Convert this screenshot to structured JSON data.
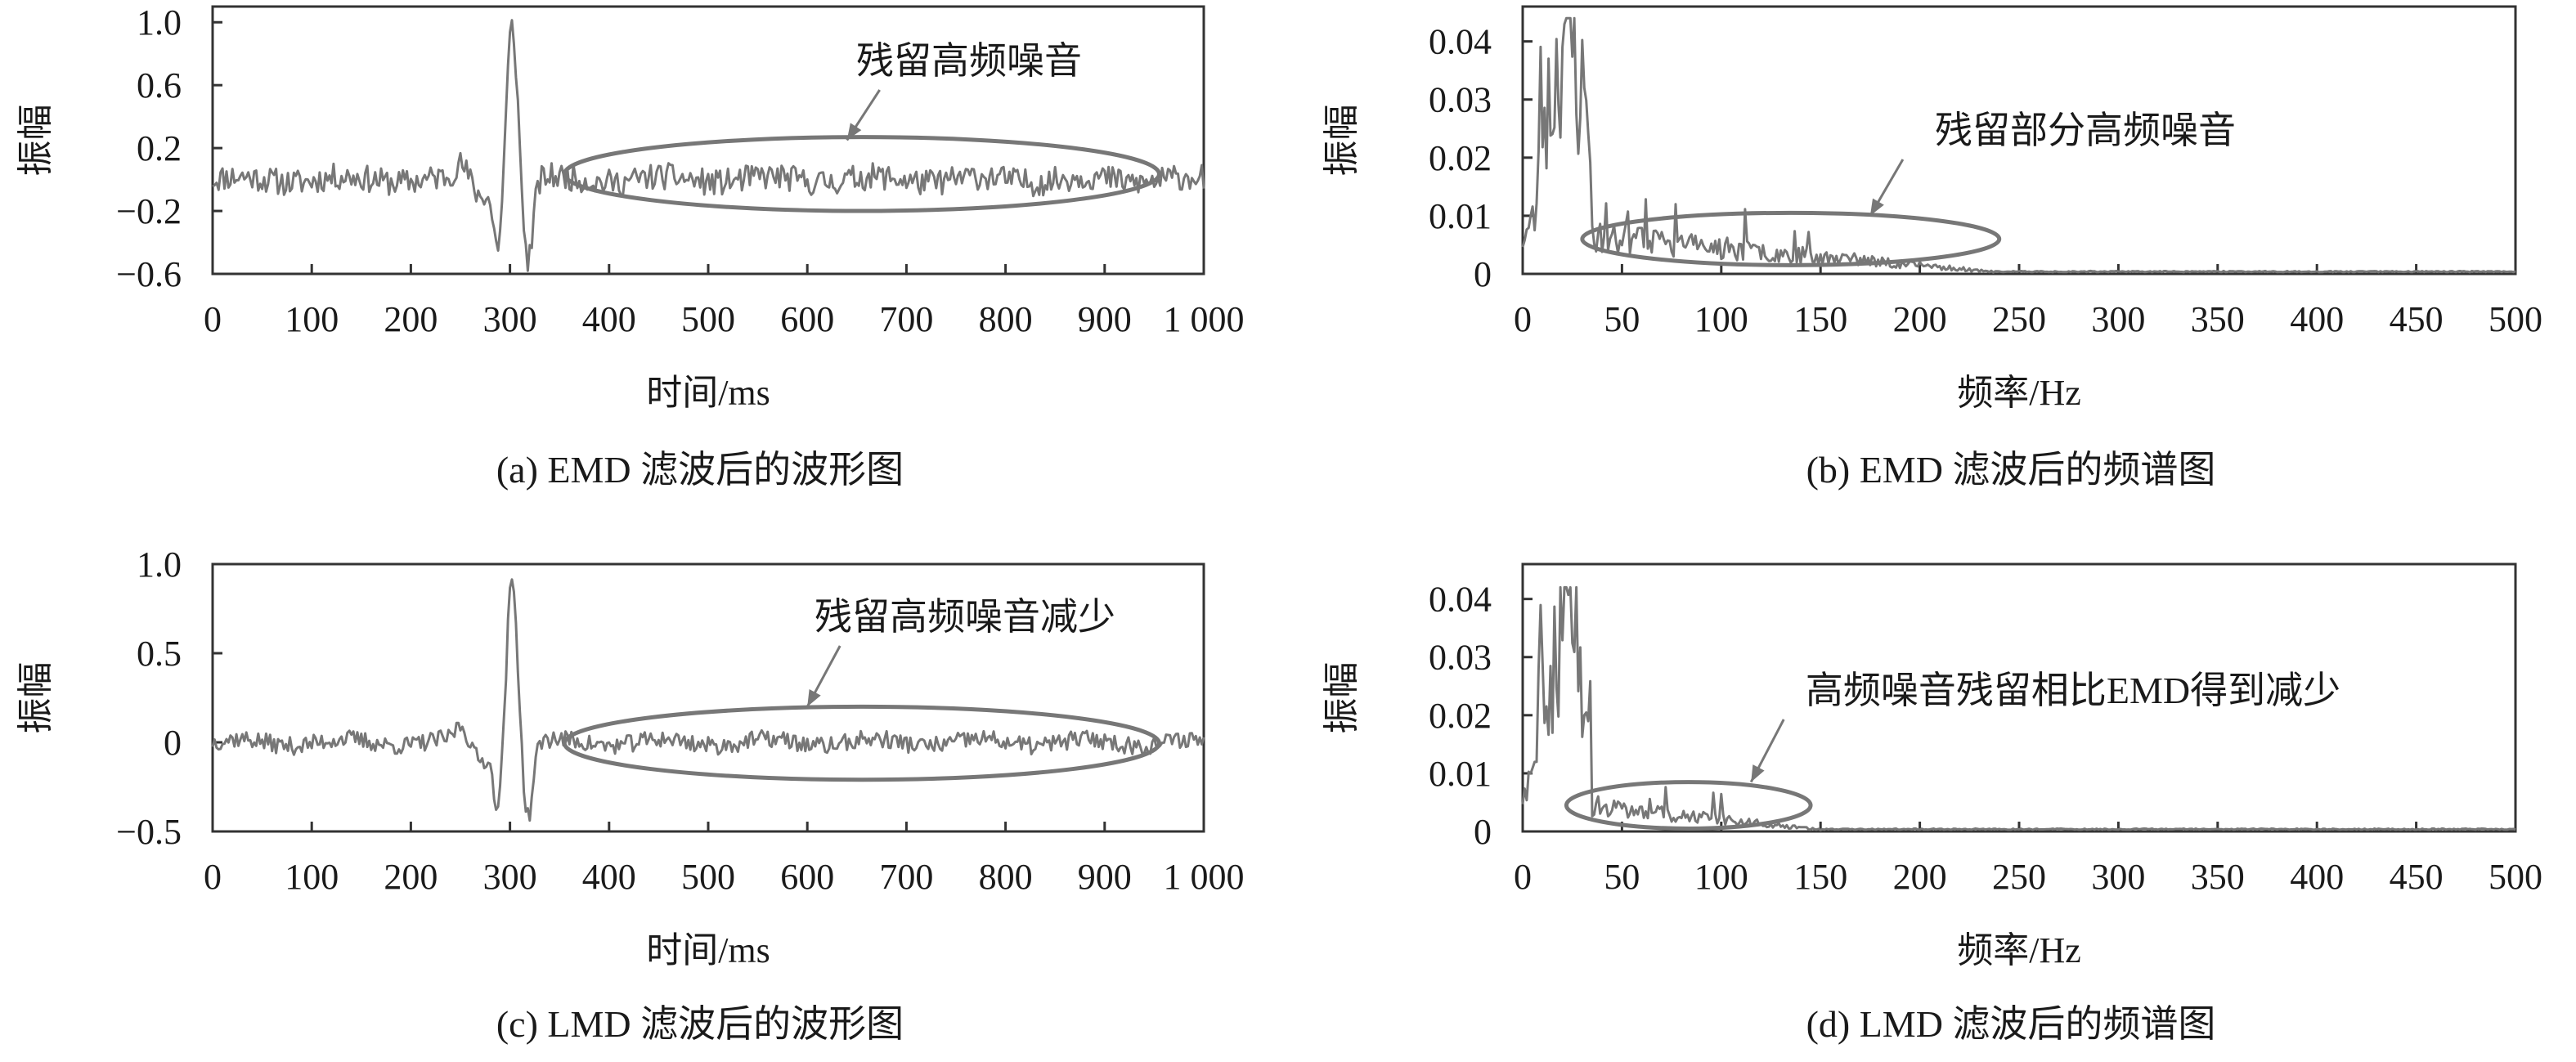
{
  "chart_data": [
    {
      "id": "a",
      "type": "line",
      "caption": "(a) EMD 滤波后的波形图",
      "xlabel": "时间/ms",
      "ylabel": "振幅",
      "xlim": [
        0,
        1000
      ],
      "ylim": [
        -0.6,
        1.1
      ],
      "x_ticks": [
        0,
        100,
        200,
        300,
        400,
        500,
        600,
        700,
        800,
        900,
        1000
      ],
      "x_tick_labels": [
        "0",
        "100",
        "200",
        "300",
        "400",
        "500",
        "600",
        "700",
        "800",
        "900",
        "1 000"
      ],
      "y_ticks": [
        -0.6,
        -0.2,
        0.2,
        0.6,
        1.0
      ],
      "y_tick_labels": [
        "−0.6",
        "−0.2",
        "0.2",
        "0.6",
        "1.0"
      ],
      "signal": {
        "kind": "waveform",
        "seed": 11,
        "noise_amplitude": 0.085,
        "peak_x": 302,
        "peak_y": 1.0,
        "trough_left": -0.43,
        "trough_right": -0.52
      },
      "annotation": {
        "text": "残留高频噪音",
        "ellipse_x": [
          355,
          955
        ],
        "ellipse_y": [
          -0.2,
          0.27
        ],
        "arrow_to": [
          640,
          0.25
        ]
      }
    },
    {
      "id": "b",
      "type": "line",
      "caption": "(b) EMD 滤波后的频谱图",
      "xlabel": "频率/Hz",
      "ylabel": "振幅",
      "xlim": [
        0,
        500
      ],
      "ylim": [
        0,
        0.046
      ],
      "x_ticks": [
        0,
        50,
        100,
        150,
        200,
        250,
        300,
        350,
        400,
        450,
        500
      ],
      "x_tick_labels": [
        "0",
        "50",
        "100",
        "150",
        "200",
        "250",
        "300",
        "350",
        "400",
        "450",
        "500"
      ],
      "y_ticks": [
        0,
        0.01,
        0.02,
        0.03,
        0.04
      ],
      "y_tick_labels": [
        "0",
        "0.01",
        "0.02",
        "0.03",
        "0.04"
      ],
      "signal": {
        "kind": "spectrum",
        "seed": 23,
        "peak": 0.044,
        "tail_level": 0.006,
        "cutoff_hz": 240
      },
      "annotation": {
        "text": "残留部分高频噪音",
        "ellipse_x": [
          30,
          240
        ],
        "ellipse_y": [
          0.0015,
          0.0105
        ],
        "arrow_to": [
          175,
          0.01
        ]
      }
    },
    {
      "id": "c",
      "type": "line",
      "caption": "(c) LMD 滤波后的波形图",
      "xlabel": "时间/ms",
      "ylabel": "振幅",
      "xlim": [
        0,
        1000
      ],
      "ylim": [
        -0.5,
        1.0
      ],
      "x_ticks": [
        0,
        100,
        200,
        300,
        400,
        500,
        600,
        700,
        800,
        900,
        1000
      ],
      "x_tick_labels": [
        "0",
        "100",
        "200",
        "300",
        "400",
        "500",
        "600",
        "700",
        "800",
        "900",
        "1 000"
      ],
      "y_ticks": [
        -0.5,
        0,
        0.5,
        1.0
      ],
      "y_tick_labels": [
        "−0.5",
        "0",
        "0.5",
        "1.0"
      ],
      "signal": {
        "kind": "waveform",
        "seed": 37,
        "noise_amplitude": 0.05,
        "peak_x": 302,
        "peak_y": 0.93,
        "trough_left": -0.35,
        "trough_right": -0.43
      },
      "annotation": {
        "text": "残留高频噪音减少",
        "ellipse_x": [
          355,
          955
        ],
        "ellipse_y": [
          -0.21,
          0.2
        ],
        "arrow_to": [
          600,
          0.2
        ]
      }
    },
    {
      "id": "d",
      "type": "line",
      "caption": "(d) LMD 滤波后的频谱图",
      "xlabel": "频率/Hz",
      "ylabel": "振幅",
      "xlim": [
        0,
        500
      ],
      "ylim": [
        0,
        0.046
      ],
      "x_ticks": [
        0,
        50,
        100,
        150,
        200,
        250,
        300,
        350,
        400,
        450,
        500
      ],
      "x_tick_labels": [
        "0",
        "50",
        "100",
        "150",
        "200",
        "250",
        "300",
        "350",
        "400",
        "450",
        "500"
      ],
      "y_ticks": [
        0,
        0.01,
        0.02,
        0.03,
        0.04
      ],
      "y_tick_labels": [
        "0",
        "0.01",
        "0.02",
        "0.03",
        "0.04"
      ],
      "signal": {
        "kind": "spectrum",
        "seed": 59,
        "peak": 0.042,
        "tail_level": 0.004,
        "cutoff_hz": 150
      },
      "annotation": {
        "text": "高频噪音残留相比EMD得到减少",
        "ellipse_x": [
          22,
          145
        ],
        "ellipse_y": [
          0.0005,
          0.0085
        ],
        "arrow_to": [
          115,
          0.0085
        ]
      }
    }
  ]
}
